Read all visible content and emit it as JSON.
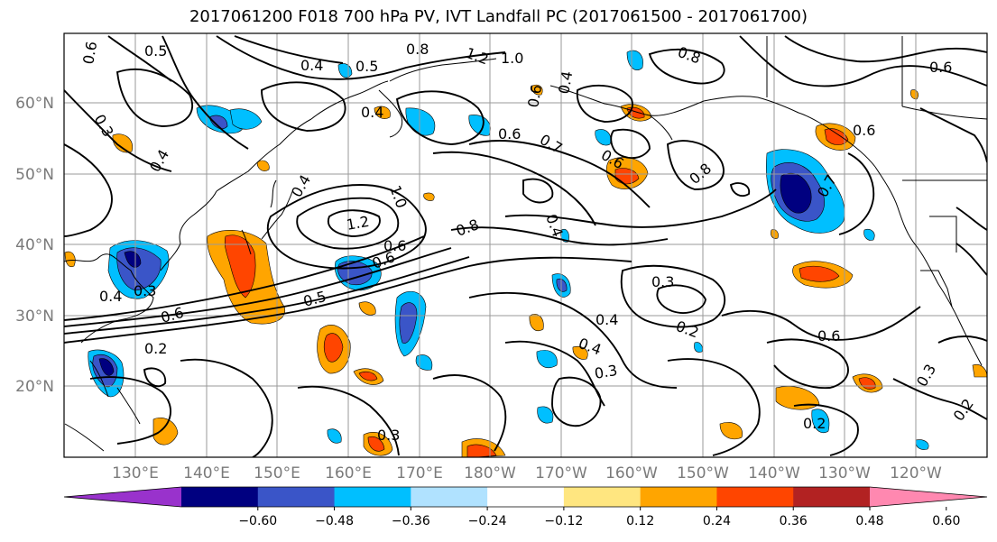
{
  "title": "2017061200 F018 700 hPa PV, IVT Landfall PC (2017061500 - 2017061700)",
  "lat_labels": [
    "60°N",
    "50°N",
    "40°N",
    "30°N",
    "20°N"
  ],
  "lon_labels": [
    "130°E",
    "140°E",
    "150°E",
    "160°E",
    "170°E",
    "180°W",
    "170°W",
    "160°W",
    "150°W",
    "140°W",
    "130°W",
    "120°W"
  ],
  "colorbar": {
    "colors": [
      "#9932cc",
      "#000080",
      "#3a55c8",
      "#00bfff",
      "#b0e2ff",
      "#ffffff",
      "#ffe680",
      "#ffa500",
      "#ff4500",
      "#b22222",
      "#ff88b0"
    ],
    "tick_labels": [
      "-0.60",
      "-0.48",
      "-0.36",
      "-0.24",
      "-0.12",
      "0.12",
      "0.24",
      "0.36",
      "0.48",
      "0.60"
    ]
  },
  "contour_labels": [
    "0.5",
    "0.6",
    "0.8",
    "1.2",
    "1.0",
    "0.4",
    "0.5",
    "0.8",
    "0.6",
    "0.6",
    "0.3",
    "0.4",
    "0.4",
    "0.7",
    "0.6",
    "0.8",
    "0.4",
    "1.0",
    "1.2",
    "0.6",
    "0.8",
    "0.4",
    "0.6",
    "0.5",
    "0.6",
    "0.4",
    "0.3",
    "0.2",
    "0.3",
    "0.4",
    "0.2",
    "0.4",
    "0.3",
    "0.6",
    "0.3",
    "0.2",
    "0.2",
    "0.3",
    "0.7",
    "0.6",
    "0.6",
    "0.4"
  ],
  "colors": {
    "shading_pos": [
      "#ffe680",
      "#ffa500",
      "#ff4500"
    ],
    "shading_neg": [
      "#b0e2ff",
      "#00bfff",
      "#3a55c8",
      "#000080"
    ]
  }
}
